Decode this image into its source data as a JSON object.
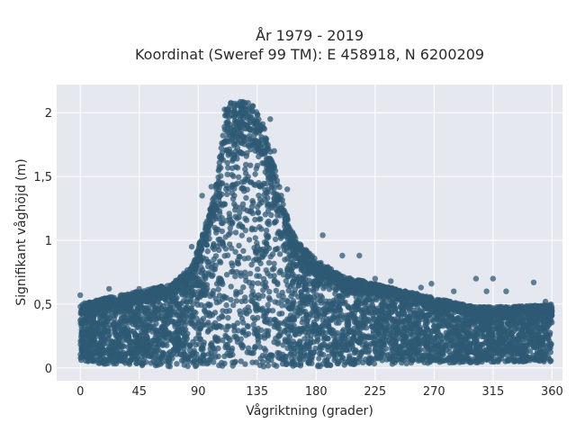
{
  "chart_data": {
    "type": "scatter",
    "title": "År 1979 - 2019",
    "subtitle": "Koordinat (Sweref 99 TM): E 458918, N 6200209",
    "xlabel": "Vågriktning (grader)",
    "ylabel": "Signifikant våghöjd (m)",
    "xlim": [
      -18,
      368
    ],
    "ylim": [
      -0.1,
      2.22
    ],
    "x_ticks": [
      0,
      45,
      90,
      135,
      180,
      225,
      270,
      315,
      360
    ],
    "x_tick_labels": [
      "0",
      "45",
      "90",
      "135",
      "180",
      "225",
      "270",
      "315",
      "360"
    ],
    "y_ticks": [
      0,
      0.5,
      1,
      1.5,
      2
    ],
    "y_tick_labels": [
      "0",
      "0,5",
      "1",
      "1,5",
      "2"
    ],
    "grid": true,
    "marker_color": "#2e5a74",
    "plot_background": "#e5e8ef",
    "series": [
      {
        "values_description": "",
        "envelope": {
          "x": [
            0,
            20,
            45,
            70,
            85,
            95,
            105,
            110,
            118,
            125,
            132,
            140,
            150,
            160,
            170,
            180,
            200,
            225,
            250,
            270,
            300,
            330,
            360
          ],
          "y_max": [
            0.5,
            0.55,
            0.6,
            0.66,
            0.8,
            1.1,
            1.5,
            2.05,
            2.12,
            2.1,
            2.05,
            1.9,
            1.5,
            1.1,
            0.95,
            0.85,
            0.72,
            0.66,
            0.6,
            0.55,
            0.48,
            0.48,
            0.5
          ],
          "y_min": [
            0.05,
            0.03,
            0.02,
            0.01,
            0.01,
            0.01,
            0.01,
            0.01,
            0.01,
            0.01,
            0.01,
            0.01,
            0.01,
            0.01,
            0.01,
            0.01,
            0.02,
            0.03,
            0.03,
            0.04,
            0.04,
            0.05,
            0.05
          ]
        },
        "outliers": [
          {
            "x": 0,
            "y": 0.57
          },
          {
            "x": 22,
            "y": 0.62
          },
          {
            "x": 45,
            "y": 0.62
          },
          {
            "x": 85,
            "y": 0.95
          },
          {
            "x": 93,
            "y": 1.35
          },
          {
            "x": 100,
            "y": 1.42
          },
          {
            "x": 145,
            "y": 1.95
          },
          {
            "x": 148,
            "y": 1.7
          },
          {
            "x": 158,
            "y": 1.4
          },
          {
            "x": 185,
            "y": 1.04
          },
          {
            "x": 200,
            "y": 0.88
          },
          {
            "x": 213,
            "y": 0.88
          },
          {
            "x": 225,
            "y": 0.7
          },
          {
            "x": 237,
            "y": 0.68
          },
          {
            "x": 260,
            "y": 0.63
          },
          {
            "x": 268,
            "y": 0.66
          },
          {
            "x": 285,
            "y": 0.6
          },
          {
            "x": 302,
            "y": 0.7
          },
          {
            "x": 310,
            "y": 0.6
          },
          {
            "x": 315,
            "y": 0.7
          },
          {
            "x": 325,
            "y": 0.6
          },
          {
            "x": 346,
            "y": 0.67
          },
          {
            "x": 355,
            "y": 0.52
          }
        ]
      }
    ]
  }
}
